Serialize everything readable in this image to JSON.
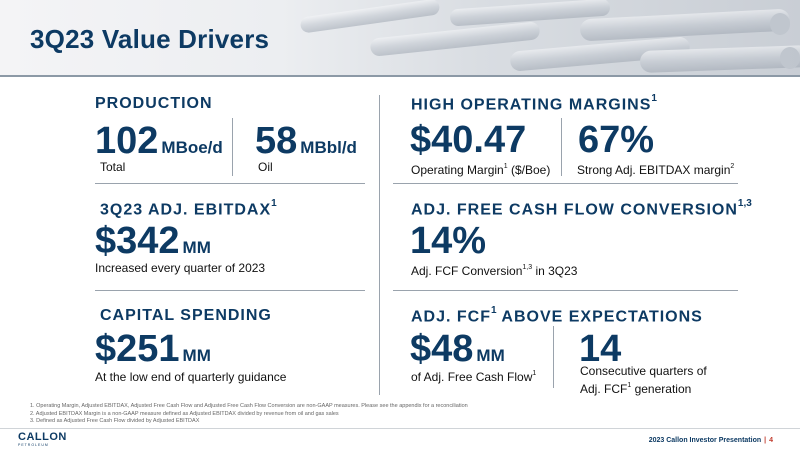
{
  "header": {
    "title": "3Q23 Value Drivers"
  },
  "production": {
    "title": "PRODUCTION",
    "total_value": "102",
    "total_unit": "MBoe/d",
    "total_label": "Total",
    "oil_value": "58",
    "oil_unit": "MBbl/d",
    "oil_label": "Oil"
  },
  "margins": {
    "title": "HIGH OPERATING MARGINS",
    "title_sup": "1",
    "op_value": "$40.47",
    "op_label": "Operating Margin",
    "op_label_sup": "1",
    "op_label_suffix": " ($/Boe)",
    "ebitdax_value": "67%",
    "ebitdax_label": "Strong Adj. EBITDAX margin",
    "ebitdax_label_sup": "2"
  },
  "adj_ebitdax": {
    "title": "3Q23 ADJ. EBITDAX",
    "title_sup": "1",
    "value": "$342",
    "unit": "MM",
    "label": "Increased every quarter of 2023"
  },
  "fcf_conversion": {
    "title": "ADJ. FREE CASH FLOW CONVERSION",
    "title_sup": "1,3",
    "value": "14%",
    "label": "Adj. FCF Conversion",
    "label_sup": "1,3",
    "label_suffix": " in 3Q23"
  },
  "capital": {
    "title": "CAPITAL SPENDING",
    "value": "$251",
    "unit": "MM",
    "label": "At the low end of quarterly guidance"
  },
  "fcf_above": {
    "title": "ADJ. FCF",
    "title_sup": "1",
    "title_suffix": " ABOVE EXPECTATIONS",
    "value": "$48",
    "unit": "MM",
    "label": "of Adj. Free Cash Flow",
    "label_sup": "1",
    "quarters_value": "14",
    "quarters_label_line1": "Consecutive quarters of",
    "quarters_label_line2_prefix": "Adj. FCF",
    "quarters_label_line2_sup": "1",
    "quarters_label_line2_suffix": " generation"
  },
  "footnotes": [
    "1. Operating Margin, Adjusted EBITDAX, Adjusted Free Cash Flow and Adjusted Free Cash Flow Conversion are non-GAAP measures. Please see the appendix for a reconciliation",
    "2. Adjusted EBITDAX Margin is a non-GAAP measure defined as Adjusted EBITDAX divided by revenue from oil and gas sales",
    "3. Defined as Adjusted Free Cash Flow divided by Adjusted EBITDAX"
  ],
  "footer": {
    "logo_text": "CALLON",
    "logo_sub": "PETROLEUM",
    "presentation": "2023 Callon Investor Presentation",
    "separator": "|",
    "page": "4"
  },
  "colors": {
    "brand_navy": "#0d3a63",
    "accent_red": "#c0392b"
  }
}
